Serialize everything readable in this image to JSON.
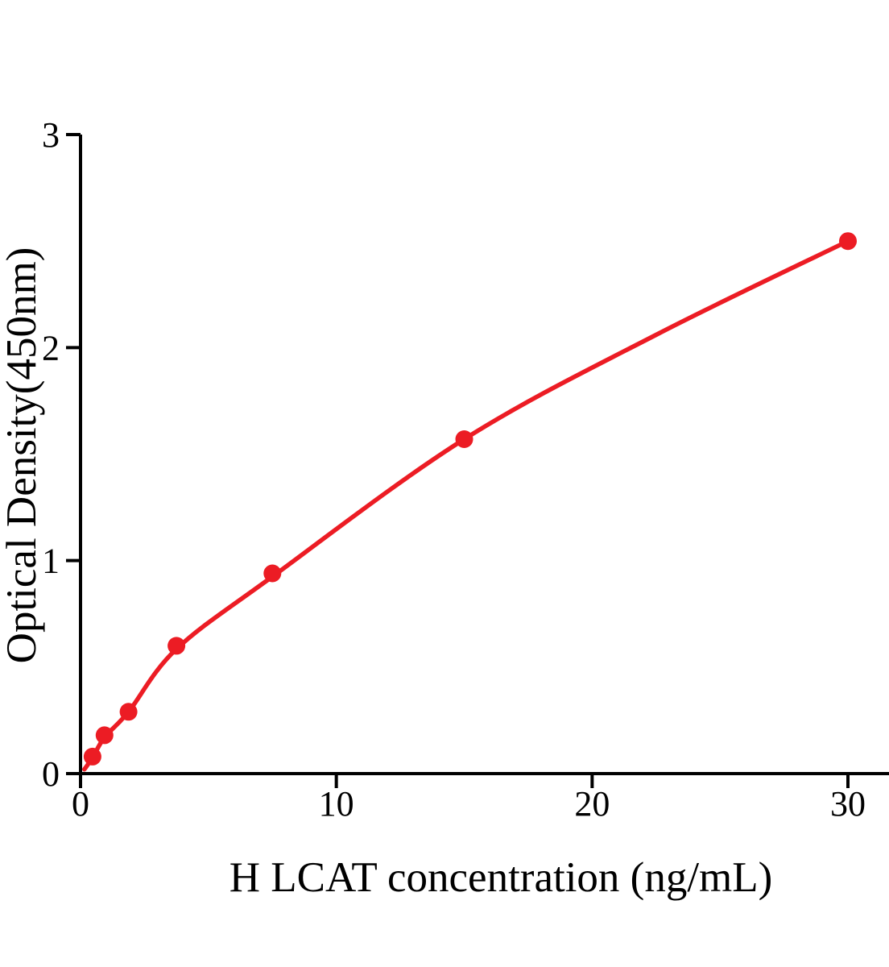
{
  "chart_data": {
    "type": "scatter",
    "title": "",
    "xlabel": "H LCAT concentration (ng/mL)",
    "ylabel": "Optical Density(450nm)",
    "x_ticks": [
      0,
      10,
      20,
      30
    ],
    "y_ticks": [
      0,
      1,
      2,
      3
    ],
    "xlim": [
      0,
      31.6
    ],
    "ylim": [
      0,
      3
    ],
    "points": {
      "x": [
        0.469,
        0.938,
        1.875,
        3.75,
        7.5,
        15,
        30
      ],
      "y": [
        0.08,
        0.18,
        0.29,
        0.6,
        0.94,
        1.57,
        2.5
      ]
    },
    "fit_curve": {
      "x": [
        0.15,
        0.469,
        0.938,
        1.875,
        3.75,
        7.5,
        15,
        22.5,
        30
      ],
      "y": [
        0.02,
        0.075,
        0.17,
        0.29,
        0.585,
        0.925,
        1.57,
        2.06,
        2.5
      ]
    },
    "series_color": "#EC1C24",
    "axis_color": "#000000",
    "grid": false,
    "legend": null
  }
}
